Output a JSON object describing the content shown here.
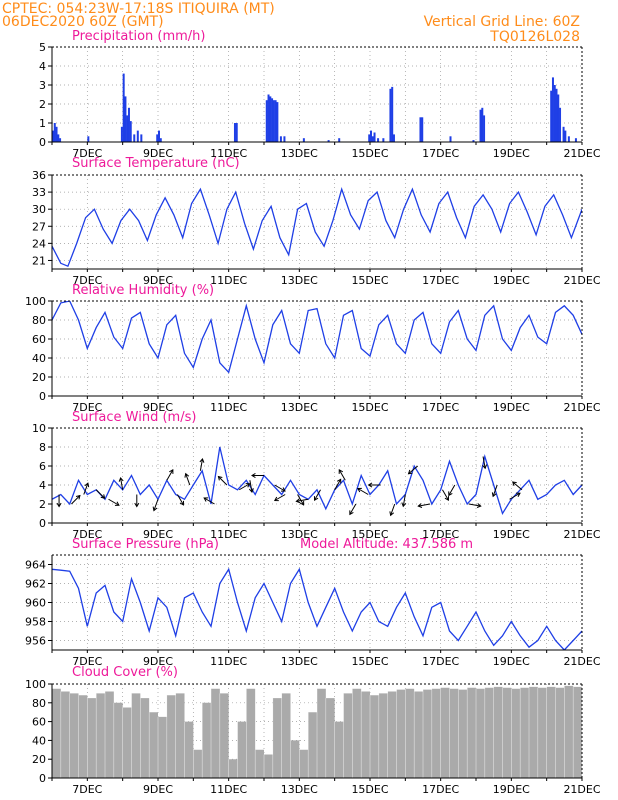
{
  "header": {
    "line1": "CPTEC:   054:23W-17:18S   ITIQUIRA (MT)",
    "line2": "06DEC2020 60Z (GMT)",
    "grid_note": "Vertical Grid Line: 60Z",
    "model_code": "TQ0126L028"
  },
  "colors": {
    "header": "#ff8c1a",
    "title": "#ee1a9a",
    "series": "#1f3fe6",
    "cloud": "#aaaaaa",
    "arrow": "#000000"
  },
  "chart_data": [
    {
      "type": "bar",
      "title": "Precipitation (mm/h)",
      "ylim": [
        0,
        5
      ],
      "yticks": [
        "0",
        "1",
        "2",
        "3",
        "4",
        "5"
      ],
      "xlim": [
        0,
        15
      ],
      "xticks": [
        "7DEC",
        "9DEC",
        "11DEC",
        "13DEC",
        "15DEC",
        "17DEC",
        "19DEC",
        "21DEC"
      ],
      "bars": [
        [
          0.0,
          0.6
        ],
        [
          0.05,
          1.0
        ],
        [
          0.1,
          0.8
        ],
        [
          0.15,
          0.4
        ],
        [
          0.2,
          0.2
        ],
        [
          1.0,
          0.3
        ],
        [
          1.95,
          0.8
        ],
        [
          2.0,
          3.6
        ],
        [
          2.05,
          2.4
        ],
        [
          2.1,
          1.4
        ],
        [
          2.15,
          1.8
        ],
        [
          2.2,
          1.1
        ],
        [
          2.3,
          0.4
        ],
        [
          2.4,
          0.6
        ],
        [
          2.5,
          0.4
        ],
        [
          2.95,
          0.4
        ],
        [
          3.0,
          0.6
        ],
        [
          3.05,
          0.2
        ],
        [
          5.15,
          1.0
        ],
        [
          5.2,
          1.0
        ],
        [
          6.05,
          2.2
        ],
        [
          6.1,
          2.5
        ],
        [
          6.15,
          2.4
        ],
        [
          6.2,
          2.3
        ],
        [
          6.25,
          2.2
        ],
        [
          6.3,
          2.2
        ],
        [
          6.35,
          2.1
        ],
        [
          6.45,
          0.3
        ],
        [
          6.55,
          0.3
        ],
        [
          7.1,
          0.2
        ],
        [
          7.8,
          0.1
        ],
        [
          8.1,
          0.2
        ],
        [
          8.95,
          0.4
        ],
        [
          9.0,
          0.6
        ],
        [
          9.05,
          0.3
        ],
        [
          9.1,
          0.5
        ],
        [
          9.2,
          0.2
        ],
        [
          9.35,
          0.2
        ],
        [
          9.55,
          2.8
        ],
        [
          9.6,
          2.9
        ],
        [
          9.65,
          0.4
        ],
        [
          10.4,
          1.3
        ],
        [
          10.45,
          1.3
        ],
        [
          11.25,
          0.3
        ],
        [
          11.9,
          0.1
        ],
        [
          12.1,
          1.7
        ],
        [
          12.15,
          1.8
        ],
        [
          12.2,
          1.4
        ],
        [
          14.1,
          2.7
        ],
        [
          14.15,
          3.4
        ],
        [
          14.2,
          3.0
        ],
        [
          14.25,
          2.8
        ],
        [
          14.3,
          2.5
        ],
        [
          14.35,
          1.8
        ],
        [
          14.45,
          0.8
        ],
        [
          14.5,
          0.6
        ],
        [
          14.6,
          0.3
        ],
        [
          14.8,
          0.2
        ]
      ]
    },
    {
      "type": "line",
      "title": "Surface Temperature (nC)",
      "ylim": [
        19.5,
        36
      ],
      "yticks": [
        "21",
        "24",
        "27",
        "30",
        "33",
        "36"
      ],
      "xlim": [
        0,
        15
      ],
      "xticks": [
        "7DEC",
        "9DEC",
        "11DEC",
        "13DEC",
        "15DEC",
        "17DEC",
        "19DEC",
        "21DEC"
      ],
      "x": [
        0,
        0.25,
        0.45,
        0.7,
        0.95,
        1.2,
        1.45,
        1.7,
        1.95,
        2.2,
        2.45,
        2.7,
        2.95,
        3.2,
        3.45,
        3.7,
        3.95,
        4.2,
        4.45,
        4.7,
        4.95,
        5.2,
        5.45,
        5.7,
        5.95,
        6.2,
        6.45,
        6.7,
        6.95,
        7.2,
        7.45,
        7.7,
        7.95,
        8.2,
        8.45,
        8.7,
        8.95,
        9.2,
        9.45,
        9.7,
        9.95,
        10.2,
        10.45,
        10.7,
        10.95,
        11.2,
        11.45,
        11.7,
        11.95,
        12.2,
        12.45,
        12.7,
        12.95,
        13.2,
        13.45,
        13.7,
        13.95,
        14.2,
        14.45,
        14.7,
        15
      ],
      "y": [
        23.5,
        20.5,
        20.0,
        24,
        28.5,
        30,
        26.5,
        24,
        28,
        30,
        28,
        24.5,
        29,
        32,
        29,
        25,
        31,
        33.5,
        29,
        24,
        30,
        33,
        27.5,
        23,
        28,
        30.5,
        25,
        22,
        30,
        31,
        26,
        23.5,
        28,
        33.5,
        29,
        26.5,
        31.5,
        33,
        28,
        25,
        30,
        33.5,
        29,
        26,
        31,
        33,
        28.5,
        25,
        30.5,
        32.5,
        30,
        26,
        31,
        33,
        29.5,
        25.5,
        30.5,
        32.5,
        29,
        25,
        30
      ]
    },
    {
      "type": "line",
      "title": "Relative Humidity (%)",
      "ylim": [
        0,
        100
      ],
      "yticks": [
        "0",
        "20",
        "40",
        "60",
        "80",
        "100"
      ],
      "xlim": [
        0,
        15
      ],
      "xticks": [
        "7DEC",
        "9DEC",
        "11DEC",
        "13DEC",
        "15DEC",
        "17DEC",
        "19DEC",
        "21DEC"
      ],
      "x": [
        0,
        0.25,
        0.5,
        0.75,
        1.0,
        1.25,
        1.5,
        1.75,
        2.0,
        2.25,
        2.5,
        2.75,
        3.0,
        3.25,
        3.5,
        3.75,
        4.0,
        4.25,
        4.5,
        4.75,
        5.0,
        5.25,
        5.5,
        5.75,
        6.0,
        6.25,
        6.5,
        6.75,
        7.0,
        7.25,
        7.5,
        7.75,
        8.0,
        8.25,
        8.5,
        8.75,
        9.0,
        9.25,
        9.5,
        9.75,
        10.0,
        10.25,
        10.5,
        10.75,
        11.0,
        11.25,
        11.5,
        11.75,
        12.0,
        12.25,
        12.5,
        12.75,
        13.0,
        13.25,
        13.5,
        13.75,
        14.0,
        14.25,
        14.5,
        14.75,
        15.0
      ],
      "y": [
        80,
        98,
        100,
        80,
        50,
        72,
        88,
        62,
        50,
        82,
        88,
        55,
        40,
        75,
        85,
        45,
        30,
        60,
        80,
        35,
        25,
        60,
        95,
        60,
        35,
        75,
        90,
        55,
        45,
        90,
        92,
        55,
        40,
        85,
        90,
        50,
        42,
        75,
        85,
        55,
        45,
        80,
        88,
        55,
        45,
        78,
        90,
        60,
        48,
        85,
        95,
        60,
        48,
        72,
        85,
        62,
        55,
        88,
        95,
        85,
        65
      ]
    },
    {
      "type": "line",
      "title": "Surface Wind (m/s)",
      "ylim": [
        0,
        10
      ],
      "yticks": [
        "0",
        "2",
        "4",
        "6",
        "8",
        "10"
      ],
      "xlim": [
        0,
        15
      ],
      "xticks": [
        "7DEC",
        "9DEC",
        "11DEC",
        "13DEC",
        "15DEC",
        "17DEC",
        "19DEC",
        "21DEC"
      ],
      "x": [
        0,
        0.25,
        0.5,
        0.75,
        1.0,
        1.25,
        1.5,
        1.75,
        2.0,
        2.25,
        2.5,
        2.75,
        3.0,
        3.25,
        3.5,
        3.75,
        4.0,
        4.25,
        4.5,
        4.75,
        5.0,
        5.25,
        5.5,
        5.75,
        6.0,
        6.25,
        6.5,
        6.75,
        7.0,
        7.25,
        7.5,
        7.75,
        8.0,
        8.25,
        8.5,
        8.75,
        9.0,
        9.25,
        9.5,
        9.75,
        10.0,
        10.25,
        10.5,
        10.75,
        11.0,
        11.25,
        11.5,
        11.75,
        12.0,
        12.25,
        12.5,
        12.75,
        13.0,
        13.25,
        13.5,
        13.75,
        14.0,
        14.25,
        14.5,
        14.75,
        15.0
      ],
      "y": [
        2.5,
        3.0,
        2.0,
        4.5,
        3.0,
        3.5,
        2.5,
        4.5,
        3.5,
        5.0,
        3.0,
        4.0,
        2.5,
        4.5,
        3.0,
        2.5,
        4.0,
        5.5,
        2.0,
        8.0,
        4.0,
        3.5,
        4.5,
        3.0,
        5.0,
        4.0,
        3.0,
        4.5,
        3.0,
        2.5,
        3.5,
        1.5,
        3.5,
        4.5,
        2.0,
        5.0,
        3.0,
        4.0,
        5.5,
        2.0,
        3.0,
        6.0,
        4.5,
        2.0,
        3.5,
        6.5,
        4.0,
        2.0,
        3.0,
        7.0,
        4.0,
        1.0,
        2.5,
        3.5,
        4.5,
        2.5,
        3.0,
        4.0,
        4.5,
        3.0,
        4.0
      ],
      "arrows": [
        [
          0.2,
          180
        ],
        [
          0.55,
          45
        ],
        [
          0.9,
          20
        ],
        [
          1.25,
          135
        ],
        [
          1.6,
          120
        ],
        [
          2.0,
          -10
        ],
        [
          2.4,
          180
        ],
        [
          3.0,
          200
        ],
        [
          3.25,
          30
        ],
        [
          3.55,
          150
        ],
        [
          3.9,
          -20
        ],
        [
          4.2,
          10
        ],
        [
          4.6,
          -60
        ],
        [
          4.95,
          -45
        ],
        [
          5.3,
          60
        ],
        [
          5.6,
          170
        ],
        [
          6.0,
          -90
        ],
        [
          6.3,
          120
        ],
        [
          6.6,
          -120
        ],
        [
          6.95,
          150
        ],
        [
          7.25,
          -100
        ],
        [
          7.6,
          210
        ],
        [
          8.0,
          30
        ],
        [
          8.3,
          -30
        ],
        [
          8.6,
          -150
        ],
        [
          8.95,
          -60
        ],
        [
          9.3,
          -90
        ],
        [
          9.7,
          200
        ],
        [
          10.0,
          190
        ],
        [
          10.35,
          230
        ],
        [
          10.7,
          260
        ],
        [
          11.05,
          150
        ],
        [
          11.4,
          -150
        ],
        [
          11.8,
          100
        ],
        [
          12.2,
          170
        ],
        [
          12.6,
          -160
        ],
        [
          12.95,
          60
        ],
        [
          13.3,
          -50
        ]
      ]
    },
    {
      "type": "line",
      "title": "Surface Pressure (hPa)",
      "annotation": "Model Altitude: 437.586  m",
      "ylim": [
        955,
        965
      ],
      "yticks": [
        "956",
        "958",
        "960",
        "962",
        "964"
      ],
      "xlim": [
        0,
        15
      ],
      "xticks": [
        "7DEC",
        "9DEC",
        "11DEC",
        "13DEC",
        "15DEC",
        "17DEC",
        "19DEC",
        "21DEC"
      ],
      "x": [
        0,
        0.25,
        0.5,
        0.75,
        1.0,
        1.25,
        1.5,
        1.75,
        2.0,
        2.25,
        2.5,
        2.75,
        3.0,
        3.25,
        3.5,
        3.75,
        4.0,
        4.25,
        4.5,
        4.75,
        5.0,
        5.25,
        5.5,
        5.75,
        6.0,
        6.25,
        6.5,
        6.75,
        7.0,
        7.25,
        7.5,
        7.75,
        8.0,
        8.25,
        8.5,
        8.75,
        9.0,
        9.25,
        9.5,
        9.75,
        10.0,
        10.25,
        10.5,
        10.75,
        11.0,
        11.25,
        11.5,
        11.75,
        12.0,
        12.25,
        12.5,
        12.75,
        13.0,
        13.25,
        13.5,
        13.75,
        14.0,
        14.25,
        14.5,
        14.75,
        15.0
      ],
      "y": [
        963.5,
        963.4,
        963.3,
        961.5,
        957.5,
        961.0,
        961.8,
        959.0,
        958.0,
        962.5,
        960.0,
        957.0,
        960.5,
        959.5,
        956.5,
        960.5,
        961.0,
        959.0,
        957.5,
        962.0,
        963.5,
        960.0,
        957.0,
        960.5,
        962.0,
        960.0,
        958.0,
        962.0,
        963.5,
        960.0,
        957.5,
        959.5,
        961.5,
        959.0,
        957.0,
        959.0,
        960.0,
        958.0,
        957.5,
        959.5,
        961.0,
        958.5,
        956.5,
        959.5,
        960.0,
        957.0,
        956.0,
        957.5,
        959.0,
        957.0,
        955.5,
        956.5,
        958.0,
        956.5,
        955.3,
        956.0,
        957.5,
        956.0,
        955.0,
        956.0,
        957.0
      ]
    },
    {
      "type": "bar",
      "title": "Cloud Cover (%)",
      "ylim": [
        0,
        100
      ],
      "yticks": [
        "0",
        "20",
        "40",
        "60",
        "80",
        "100"
      ],
      "xlim": [
        0,
        15
      ],
      "xticks": [
        "7DEC",
        "9DEC",
        "11DEC",
        "13DEC",
        "15DEC",
        "17DEC",
        "19DEC",
        "21DEC"
      ],
      "x": [
        0,
        0.25,
        0.5,
        0.75,
        1.0,
        1.25,
        1.5,
        1.75,
        2.0,
        2.25,
        2.5,
        2.75,
        3.0,
        3.25,
        3.5,
        3.75,
        4.0,
        4.25,
        4.5,
        4.75,
        5.0,
        5.25,
        5.5,
        5.75,
        6.0,
        6.25,
        6.5,
        6.75,
        7.0,
        7.25,
        7.5,
        7.75,
        8.0,
        8.25,
        8.5,
        8.75,
        9.0,
        9.25,
        9.5,
        9.75,
        10.0,
        10.25,
        10.5,
        10.75,
        11.0,
        11.25,
        11.5,
        11.75,
        12.0,
        12.25,
        12.5,
        12.75,
        13.0,
        13.25,
        13.5,
        13.75,
        14.0,
        14.25,
        14.5,
        14.75,
        15.0
      ],
      "values": [
        95,
        92,
        90,
        88,
        85,
        90,
        92,
        80,
        75,
        90,
        85,
        70,
        65,
        88,
        90,
        60,
        30,
        80,
        95,
        90,
        20,
        60,
        95,
        30,
        25,
        85,
        90,
        40,
        30,
        70,
        95,
        85,
        60,
        90,
        95,
        92,
        88,
        90,
        92,
        94,
        95,
        92,
        94,
        95,
        96,
        95,
        94,
        96,
        95,
        96,
        97,
        96,
        95,
        96,
        97,
        96,
        97,
        96,
        98,
        97,
        98
      ]
    }
  ]
}
